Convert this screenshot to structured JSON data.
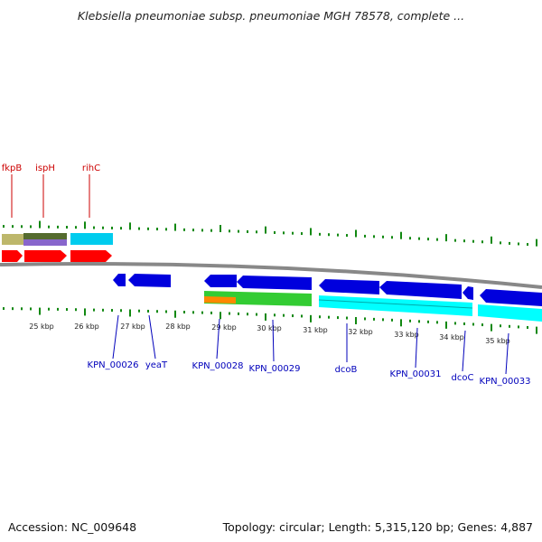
{
  "title": "Klebsiella pneumoniae subsp. pneumoniae MGH 78578, complete ...",
  "footer": {
    "accession": "Accession: NC_009648",
    "summary": "Topology: circular; Length: 5,315,120 bp; Genes: 4,887"
  },
  "colors": {
    "forward_gene": "#ff0000",
    "reverse_gene": "#0000dd",
    "reverse_label": "#0000bb",
    "forward_label": "#cc0000",
    "tick": "#118811",
    "backbone": "#888888",
    "track_khaki": "#bdb76b",
    "track_darkgreen": "#556b2f",
    "track_purple": "#8866cc",
    "track_cyan": "#00ccee",
    "track_green": "#33cc33",
    "track_orange": "#ff8800",
    "track_aqua": "#00ffff"
  },
  "forward_labels": [
    "fkpB",
    "ispH",
    "rihC"
  ],
  "reverse_labels": [
    "KPN_00026",
    "yeaT",
    "KPN_00028",
    "KPN_00029",
    "dcoB",
    "KPN_00031",
    "dcoC",
    "KPN_00033"
  ],
  "scale_labels": [
    "25 kbp",
    "26 kbp",
    "27 kbp",
    "28 kbp",
    "29 kbp",
    "30 kbp",
    "31 kbp",
    "32 kbp",
    "33 kbp",
    "34 kbp",
    "35 kbp"
  ]
}
